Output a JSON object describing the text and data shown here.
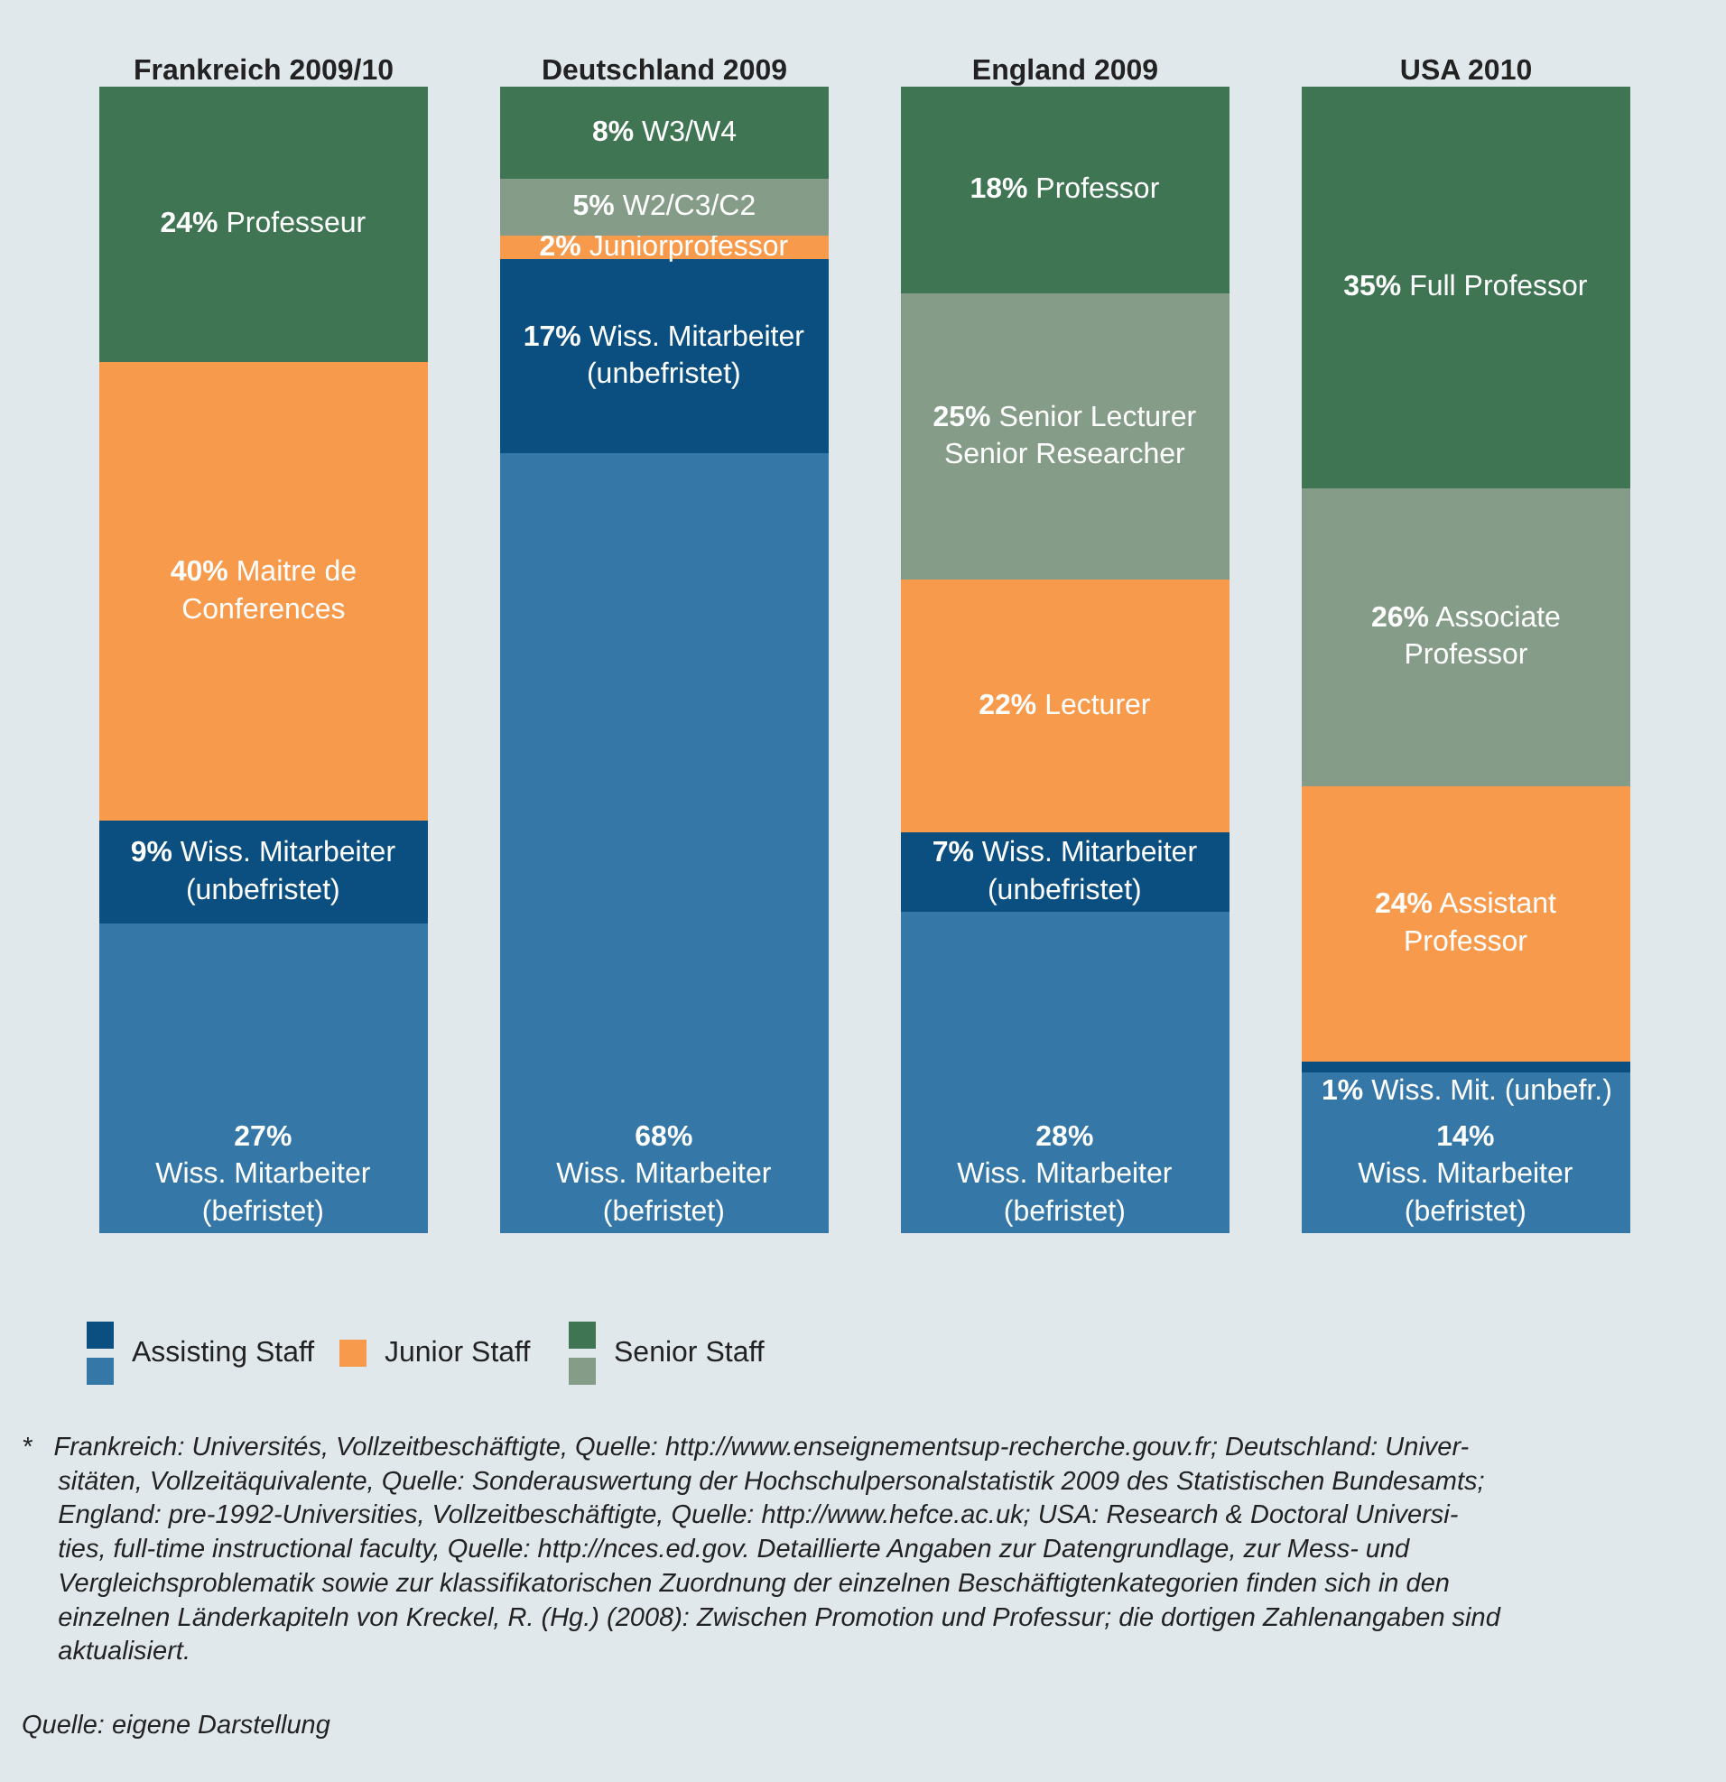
{
  "chart_data": {
    "type": "bar",
    "stacked": true,
    "tick_labels": "x",
    "grid": false,
    "legend": "bottom left",
    "ylim": [
      0,
      100
    ],
    "categories": [
      "Frankreich 2009/10",
      "Deutschland 2009",
      "England 2009",
      "USA 2010"
    ],
    "series": [
      {
        "color": "#3577a7",
        "values": [
          27,
          68,
          28,
          14
        ],
        "value_labels": [
          "27%\nWiss. Mitarbeiter\n(befristet)",
          "68%\nWiss. Mitarbeiter\n(befristet)",
          "28%\nWiss. Mitarbeiter\n(befristet)",
          "14%\nWiss. Mitarbeiter\n(befristet)"
        ]
      },
      {
        "name": "Assisting Staff",
        "color": "#0b4f80",
        "values": [
          9,
          17,
          7,
          1
        ],
        "value_labels": [
          "9% Wiss. Mitarbeiter\n(unbefristet)",
          "17% Wiss. Mitarbeiter\n(unbefristet)",
          "7% Wiss. Mitarbeiter\n(unbefristet)",
          "1% Wiss. Mit. (unbefr.)"
        ]
      },
      {
        "name": "Junior Staff",
        "color": "#f89a4b",
        "values": [
          40,
          2,
          22,
          24
        ],
        "value_labels": [
          "40% Maitre de\nConferences",
          "2% Juniorprofessor",
          "22% Lecturer",
          "24% Assistant\nProfessor"
        ]
      },
      {
        "color": "#859d88",
        "values": [
          null,
          5,
          25,
          26
        ],
        "value_labels": [
          null,
          "5% W2/C3/C2",
          "25% Senior Lecturer\nSenior Researcher",
          "26% Associate\nProfessor"
        ]
      },
      {
        "name": "Senior Staff",
        "color": "#3f7553",
        "values": [
          24,
          8,
          18,
          35
        ],
        "value_labels": [
          "24% Professeur",
          "8% W3/W4",
          "18% Professor",
          "35% Full Professor"
        ]
      }
    ],
    "annotations": [
      "*   Frankreich: Universités, Vollzeitbeschäftigte, Quelle: http://www.enseignementsup-recherche.gouv.fr; Deutschland: Univer-\n     sitäten, Vollzeitäquivalente, Quelle: Sonderauswertung der Hochschulpersonalstatistik 2009 des Statistischen Bundesamts;\n     England: pre-1992-Universities, Vollzeitbeschäftigte, Quelle: http://www.hefce.ac.uk; USA: Research & Doctoral Universi-\n     ties, full-time instructional faculty, Quelle: http://nces.ed.gov. Detaillierte Angaben zur Datengrundlage, zur Mess- und\n     Vergleichsproblematik sowie zur klassifikatorischen Zuordnung der einzelnen Beschäftigtenkategorien finden sich in den\n     einzelnen Länderkapiteln von Kreckel, R. (Hg.) (2008): Zwischen Promotion und Professur; die dortigen Zahlenangaben sind\n     aktualisiert.",
      "Quelle: eigene Darstellung"
    ]
  }
}
